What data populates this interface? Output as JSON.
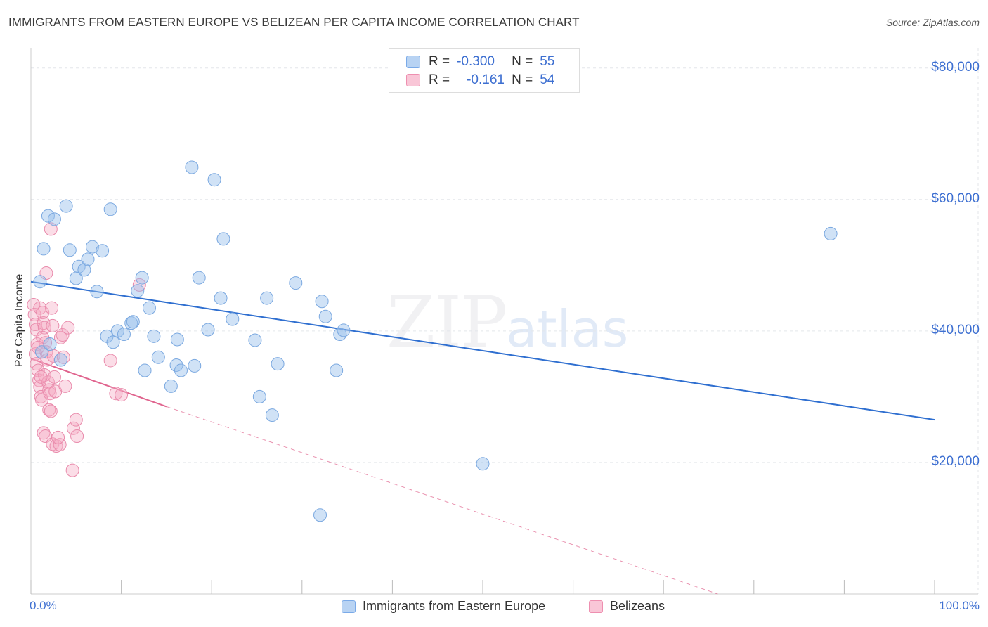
{
  "header": {
    "title": "IMMIGRANTS FROM EASTERN EUROPE VS BELIZEAN PER CAPITA INCOME CORRELATION CHART",
    "source": "Source: ZipAtlas.com"
  },
  "watermark": {
    "zip": "ZIP",
    "atlas": "atlas"
  },
  "legend": {
    "rows": [
      {
        "r_label": "R =",
        "r_value": "-0.300",
        "n_label": "N =",
        "n_value": "55",
        "color": "#7aaae8",
        "fill": "#b8d3f3"
      },
      {
        "r_label": "R =",
        "r_value": "-0.161",
        "n_label": "N =",
        "n_value": "54",
        "color": "#ee8fb0",
        "fill": "#f9c6d7"
      }
    ]
  },
  "bottom_legend": {
    "items": [
      {
        "label": "Immigrants from Eastern Europe"
      },
      {
        "label": "Belizeans"
      }
    ]
  },
  "colors": {
    "blue_fill": "rgba(150,190,235,0.45)",
    "blue_stroke": "#7aa8e0",
    "blue_line": "#2f6fd0",
    "pink_fill": "rgba(245,170,195,0.40)",
    "pink_stroke": "#e98aab",
    "pink_line": "#e0648e",
    "grid": "#e3e6ea",
    "axis_text": "#3d6fd1"
  },
  "chart_data": {
    "type": "scatter",
    "title": "IMMIGRANTS FROM EASTERN EUROPE VS BELIZEAN PER CAPITA INCOME CORRELATION CHART",
    "xlabel": "",
    "ylabel": "Per Capita Income",
    "xlim": [
      0,
      100
    ],
    "ylim": [
      0,
      82000
    ],
    "x_tick_labels": [
      "0.0%",
      "100.0%"
    ],
    "y_ticks": [
      20000,
      40000,
      60000,
      80000
    ],
    "y_tick_labels": [
      "$20,000",
      "$40,000",
      "$60,000",
      "$80,000"
    ],
    "grid": true,
    "series": [
      {
        "name": "Immigrants from Eastern Europe",
        "r": -0.3,
        "n": 55,
        "trend": {
          "x0": 0,
          "y0": 47500,
          "x1": 100,
          "y1": 26500
        },
        "points": [
          [
            1.0,
            47500
          ],
          [
            1.4,
            52500
          ],
          [
            1.9,
            57500
          ],
          [
            2.6,
            57000
          ],
          [
            3.9,
            59000
          ],
          [
            4.3,
            52300
          ],
          [
            5.3,
            49800
          ],
          [
            5.0,
            48000
          ],
          [
            5.9,
            49300
          ],
          [
            6.3,
            50900
          ],
          [
            6.8,
            52800
          ],
          [
            7.3,
            46000
          ],
          [
            7.9,
            52200
          ],
          [
            8.4,
            39200
          ],
          [
            8.8,
            58500
          ],
          [
            9.1,
            38300
          ],
          [
            9.6,
            40000
          ],
          [
            10.3,
            39500
          ],
          [
            11.1,
            41200
          ],
          [
            11.3,
            41400
          ],
          [
            11.8,
            46100
          ],
          [
            12.3,
            48100
          ],
          [
            12.6,
            34000
          ],
          [
            13.1,
            43500
          ],
          [
            13.6,
            39200
          ],
          [
            14.1,
            36000
          ],
          [
            15.5,
            31600
          ],
          [
            16.1,
            34800
          ],
          [
            16.2,
            38700
          ],
          [
            16.6,
            34000
          ],
          [
            18.1,
            34700
          ],
          [
            18.6,
            48100
          ],
          [
            17.8,
            64900
          ],
          [
            19.6,
            40200
          ],
          [
            20.3,
            63000
          ],
          [
            21.0,
            45000
          ],
          [
            21.3,
            54000
          ],
          [
            22.3,
            41800
          ],
          [
            24.8,
            38600
          ],
          [
            25.3,
            30000
          ],
          [
            26.1,
            45000
          ],
          [
            26.7,
            27200
          ],
          [
            27.3,
            35000
          ],
          [
            29.3,
            47300
          ],
          [
            32.2,
            44500
          ],
          [
            32.6,
            42200
          ],
          [
            33.8,
            34000
          ],
          [
            34.2,
            39500
          ],
          [
            34.6,
            40100
          ],
          [
            32.0,
            12000
          ],
          [
            50.0,
            19800
          ],
          [
            88.5,
            54800
          ],
          [
            1.2,
            36800
          ],
          [
            2.1,
            38000
          ],
          [
            3.3,
            35600
          ]
        ]
      },
      {
        "name": "Belizeans",
        "r": -0.161,
        "n": 54,
        "trend_solid": {
          "x0": 0,
          "y0": 35800,
          "x1": 15,
          "y1": 28500
        },
        "trend_dashed": {
          "x0": 15,
          "y0": 28500,
          "x1": 76,
          "y1": 0
        },
        "points": [
          [
            0.3,
            44000
          ],
          [
            0.4,
            42500
          ],
          [
            0.5,
            41000
          ],
          [
            0.6,
            40200
          ],
          [
            0.7,
            38000
          ],
          [
            0.5,
            36500
          ],
          [
            0.6,
            35000
          ],
          [
            0.8,
            34000
          ],
          [
            0.9,
            32500
          ],
          [
            1.0,
            31500
          ],
          [
            1.1,
            30000
          ],
          [
            1.2,
            29500
          ],
          [
            1.0,
            43500
          ],
          [
            1.3,
            42800
          ],
          [
            1.4,
            41200
          ],
          [
            1.5,
            40500
          ],
          [
            1.3,
            39000
          ],
          [
            1.6,
            38200
          ],
          [
            1.7,
            36800
          ],
          [
            1.8,
            35600
          ],
          [
            1.5,
            33300
          ],
          [
            1.9,
            32200
          ],
          [
            2.0,
            31000
          ],
          [
            2.1,
            30500
          ],
          [
            1.7,
            48800
          ],
          [
            2.2,
            55500
          ],
          [
            2.3,
            43500
          ],
          [
            2.4,
            40800
          ],
          [
            2.5,
            36200
          ],
          [
            2.6,
            33000
          ],
          [
            2.7,
            30800
          ],
          [
            2.0,
            28000
          ],
          [
            2.2,
            27800
          ],
          [
            1.4,
            24500
          ],
          [
            1.6,
            24000
          ],
          [
            2.4,
            22800
          ],
          [
            2.8,
            22500
          ],
          [
            3.2,
            22700
          ],
          [
            3.0,
            23800
          ],
          [
            3.3,
            39000
          ],
          [
            3.5,
            39400
          ],
          [
            3.6,
            36000
          ],
          [
            3.8,
            31600
          ],
          [
            4.1,
            40500
          ],
          [
            4.7,
            25200
          ],
          [
            5.0,
            26500
          ],
          [
            5.1,
            24000
          ],
          [
            4.6,
            18800
          ],
          [
            8.8,
            35500
          ],
          [
            9.4,
            30500
          ],
          [
            10.0,
            30300
          ],
          [
            12.0,
            47000
          ],
          [
            0.8,
            37500
          ],
          [
            1.1,
            33000
          ]
        ]
      }
    ]
  }
}
